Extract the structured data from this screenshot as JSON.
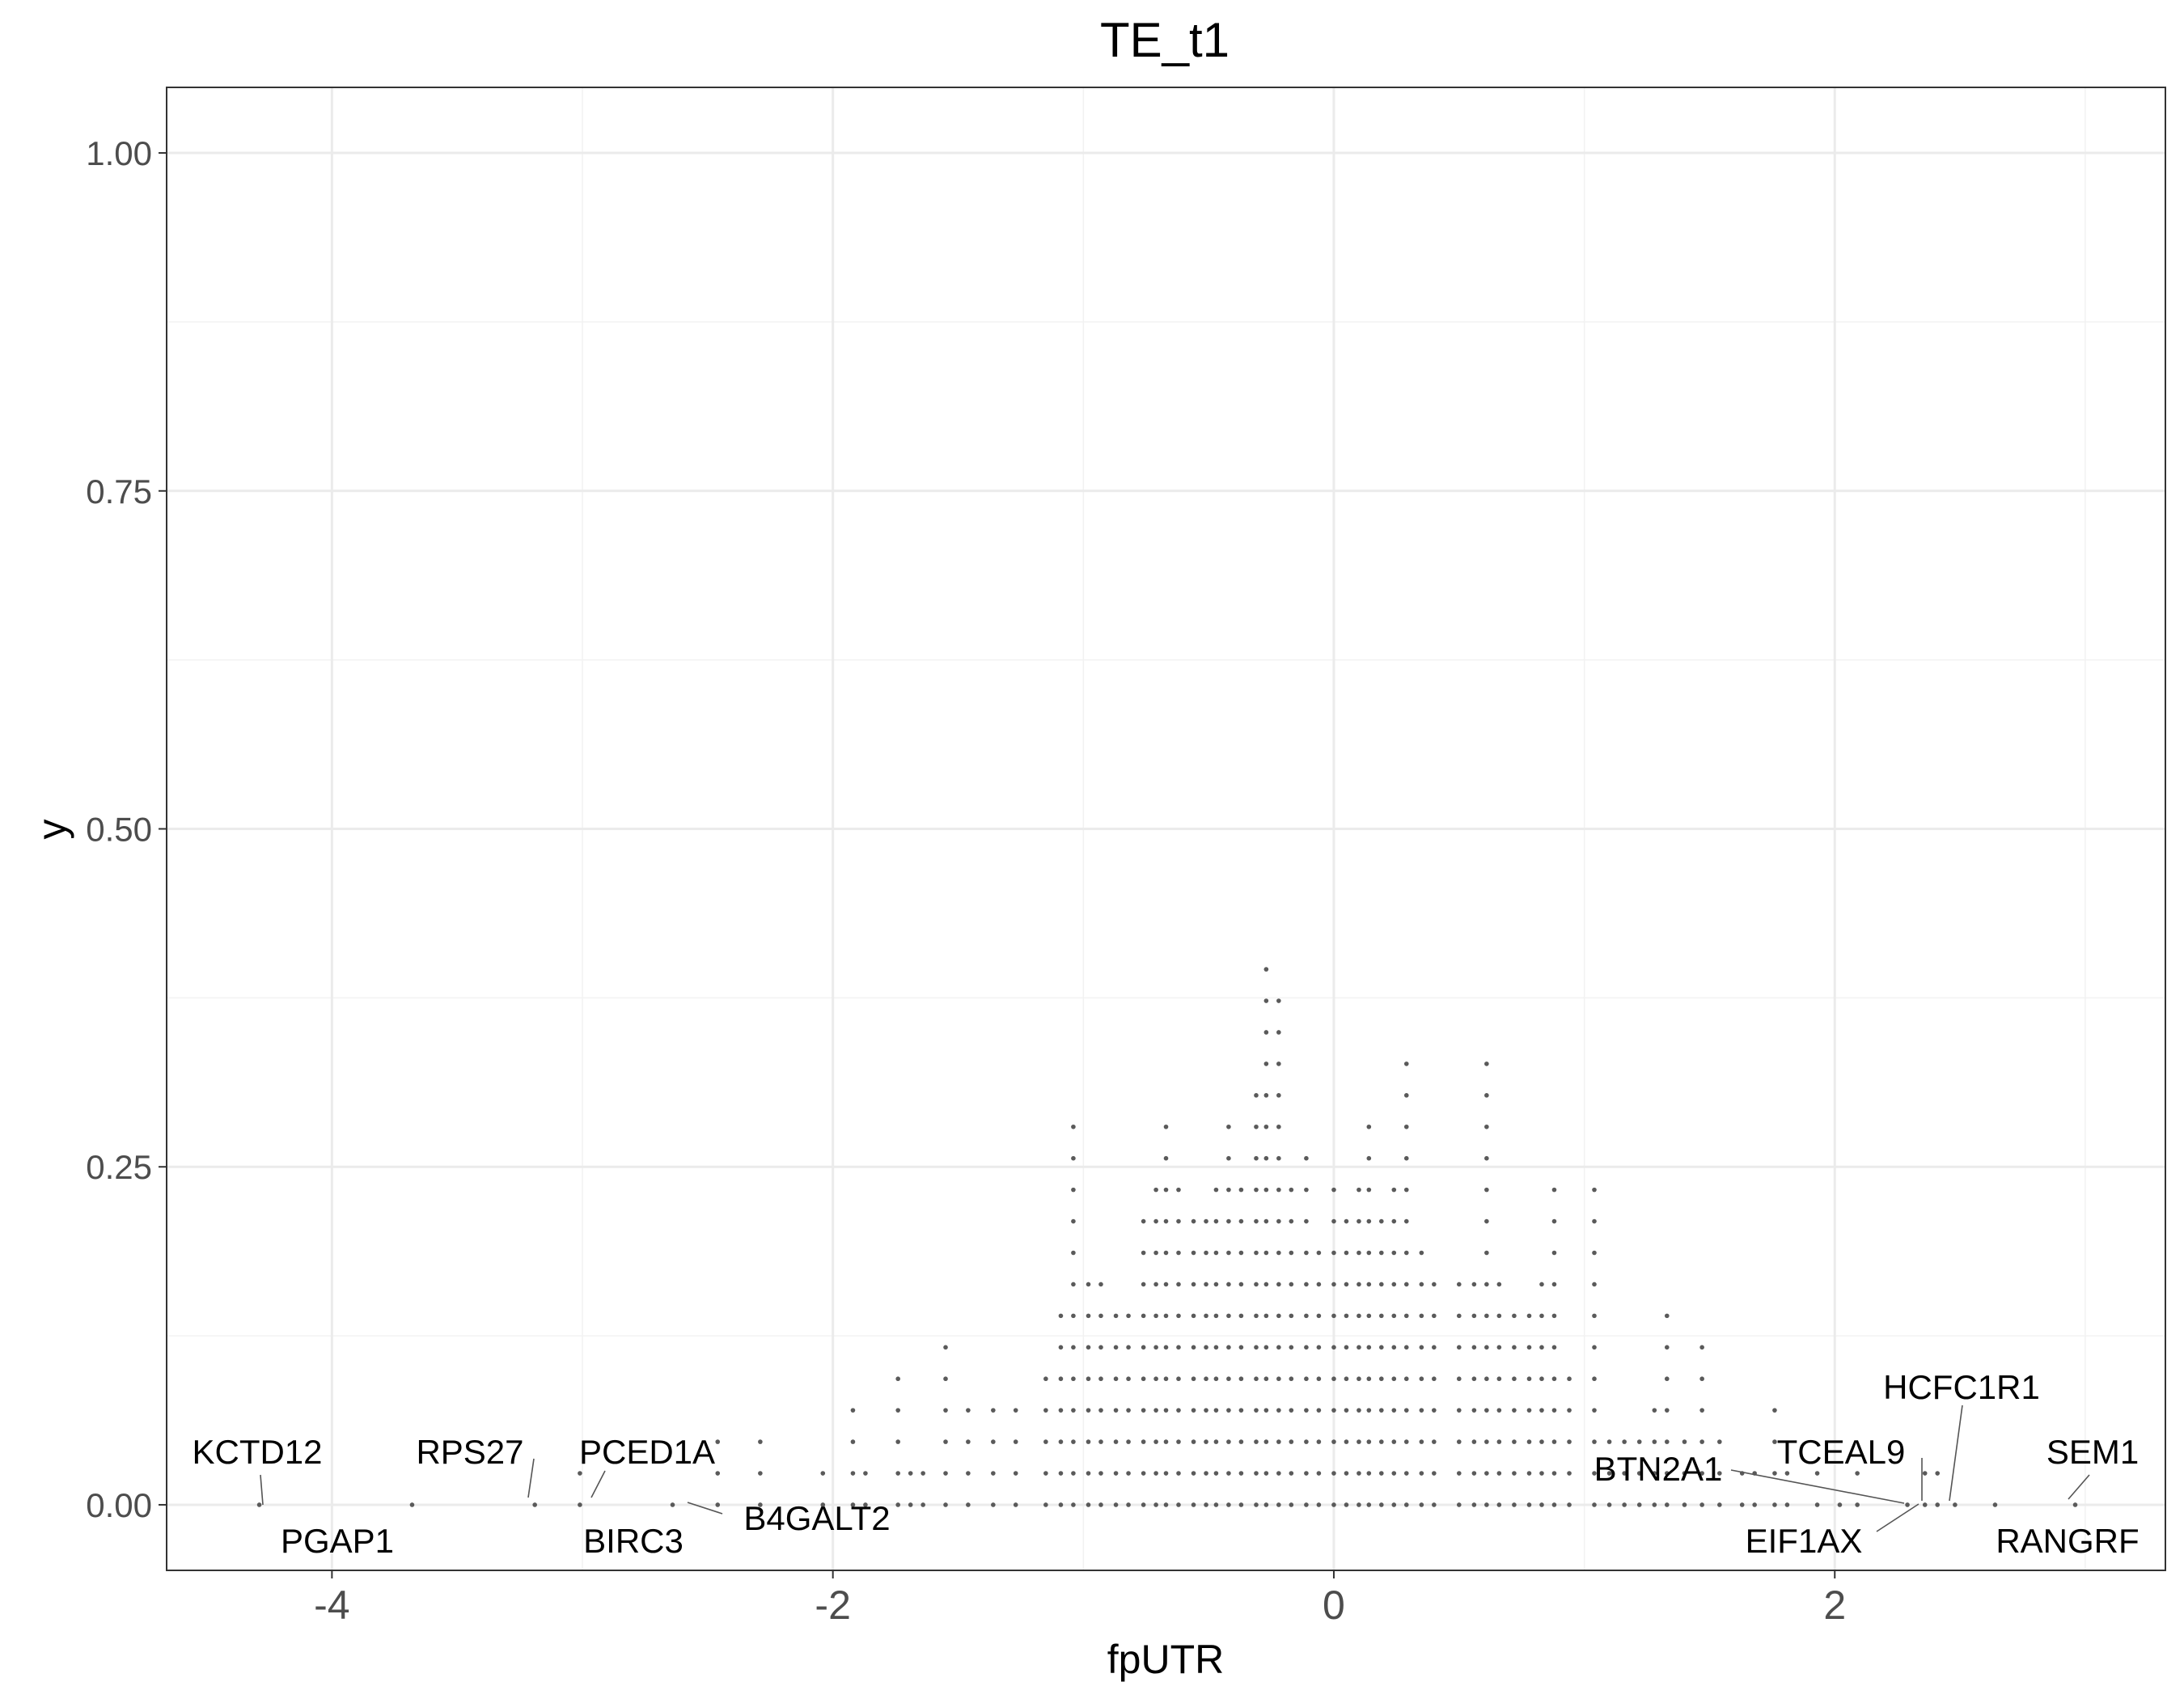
{
  "chart_data": {
    "type": "scatter",
    "title": "TE_t1",
    "xlabel": "fpUTR",
    "ylabel": "y",
    "xlim": [
      -4.66,
      3.32
    ],
    "ylim": [
      -0.0485,
      1.0485
    ],
    "x_ticks": [
      {
        "value": -4,
        "label": "-4"
      },
      {
        "value": -2,
        "label": "-2"
      },
      {
        "value": 0,
        "label": "0"
      },
      {
        "value": 2,
        "label": "2"
      }
    ],
    "y_ticks": [
      {
        "value": 0.0,
        "label": "0.00"
      },
      {
        "value": 0.25,
        "label": "0.25"
      },
      {
        "value": 0.5,
        "label": "0.50"
      },
      {
        "value": 0.75,
        "label": "0.75"
      },
      {
        "value": 1.0,
        "label": "1.00"
      }
    ],
    "grid": true,
    "point_color": "#5a5a5a",
    "stack_step": 0.0233,
    "columns": [
      {
        "x": -4.29,
        "n": 1
      },
      {
        "x": -3.68,
        "n": 1
      },
      {
        "x": -3.19,
        "n": 1
      },
      {
        "x": -3.01,
        "n": 2
      },
      {
        "x": -2.64,
        "n": 1
      },
      {
        "x": -2.46,
        "n": 3
      },
      {
        "x": -2.29,
        "n": 3
      },
      {
        "x": -2.04,
        "n": 2
      },
      {
        "x": -1.92,
        "n": 4
      },
      {
        "x": -1.87,
        "n": 2
      },
      {
        "x": -1.74,
        "n": 5
      },
      {
        "x": -1.69,
        "n": 2
      },
      {
        "x": -1.64,
        "n": 2
      },
      {
        "x": -1.55,
        "n": 6
      },
      {
        "x": -1.46,
        "n": 4
      },
      {
        "x": -1.36,
        "n": 4
      },
      {
        "x": -1.27,
        "n": 4
      },
      {
        "x": -1.15,
        "n": 5
      },
      {
        "x": -1.09,
        "n": 7
      },
      {
        "x": -1.04,
        "n": 13
      },
      {
        "x": -0.98,
        "n": 8
      },
      {
        "x": -0.93,
        "n": 8
      },
      {
        "x": -0.87,
        "n": 7
      },
      {
        "x": -0.82,
        "n": 7
      },
      {
        "x": -0.76,
        "n": 10
      },
      {
        "x": -0.71,
        "n": 11
      },
      {
        "x": -0.67,
        "n": 13
      },
      {
        "x": -0.62,
        "n": 11
      },
      {
        "x": -0.56,
        "n": 10
      },
      {
        "x": -0.51,
        "n": 10
      },
      {
        "x": -0.47,
        "n": 11
      },
      {
        "x": -0.42,
        "n": 13
      },
      {
        "x": -0.37,
        "n": 11
      },
      {
        "x": -0.31,
        "n": 14
      },
      {
        "x": -0.27,
        "n": 18
      },
      {
        "x": -0.22,
        "n": 17
      },
      {
        "x": -0.17,
        "n": 11
      },
      {
        "x": -0.11,
        "n": 12
      },
      {
        "x": -0.06,
        "n": 9
      },
      {
        "x": 0.0,
        "n": 11
      },
      {
        "x": 0.05,
        "n": 10
      },
      {
        "x": 0.1,
        "n": 11
      },
      {
        "x": 0.14,
        "n": 13
      },
      {
        "x": 0.19,
        "n": 10
      },
      {
        "x": 0.24,
        "n": 11
      },
      {
        "x": 0.29,
        "n": 15
      },
      {
        "x": 0.35,
        "n": 9
      },
      {
        "x": 0.4,
        "n": 8
      },
      {
        "x": 0.5,
        "n": 8
      },
      {
        "x": 0.56,
        "n": 8
      },
      {
        "x": 0.61,
        "n": 15
      },
      {
        "x": 0.66,
        "n": 8
      },
      {
        "x": 0.72,
        "n": 7
      },
      {
        "x": 0.78,
        "n": 7
      },
      {
        "x": 0.83,
        "n": 8
      },
      {
        "x": 0.88,
        "n": 11
      },
      {
        "x": 0.94,
        "n": 5
      },
      {
        "x": 1.04,
        "n": 11
      },
      {
        "x": 1.1,
        "n": 3
      },
      {
        "x": 1.16,
        "n": 3
      },
      {
        "x": 1.22,
        "n": 3
      },
      {
        "x": 1.28,
        "n": 4
      },
      {
        "x": 1.33,
        "n": 7
      },
      {
        "x": 1.4,
        "n": 3
      },
      {
        "x": 1.47,
        "n": 6
      },
      {
        "x": 1.54,
        "n": 3
      },
      {
        "x": 1.63,
        "n": 2
      },
      {
        "x": 1.68,
        "n": 2
      },
      {
        "x": 1.76,
        "n": 4
      },
      {
        "x": 1.81,
        "n": 2
      },
      {
        "x": 1.93,
        "n": 2
      },
      {
        "x": 2.02,
        "n": 1
      },
      {
        "x": 2.09,
        "n": 2
      },
      {
        "x": 2.29,
        "n": 1
      },
      {
        "x": 2.36,
        "n": 2
      },
      {
        "x": 2.41,
        "n": 2
      },
      {
        "x": 2.48,
        "n": 1
      },
      {
        "x": 2.64,
        "n": 1
      },
      {
        "x": 2.96,
        "n": 1
      }
    ],
    "labels": [
      {
        "text": "KCTD12",
        "x": -4.29,
        "y": 0.0
      },
      {
        "text": "PGAP1",
        "x": -3.68,
        "y": 0.0
      },
      {
        "text": "RPS27",
        "x": -3.19,
        "y": 0.0
      },
      {
        "text": "PCED1A",
        "x": -3.01,
        "y": 0.0
      },
      {
        "text": "BIRC3",
        "x": -3.01,
        "y": 0.0
      },
      {
        "text": "B4GALT2",
        "x": -2.64,
        "y": 0.0
      },
      {
        "text": "BTN2A1",
        "x": 2.29,
        "y": 0.0
      },
      {
        "text": "TCEAL9",
        "x": 2.36,
        "y": 0.0
      },
      {
        "text": "HCFC1R1",
        "x": 2.48,
        "y": 0.0
      },
      {
        "text": "EIF1AX",
        "x": 2.41,
        "y": 0.0
      },
      {
        "text": "SEM1",
        "x": 2.96,
        "y": 0.0
      },
      {
        "text": "RANGRF",
        "x": 2.96,
        "y": 0.0
      }
    ]
  }
}
